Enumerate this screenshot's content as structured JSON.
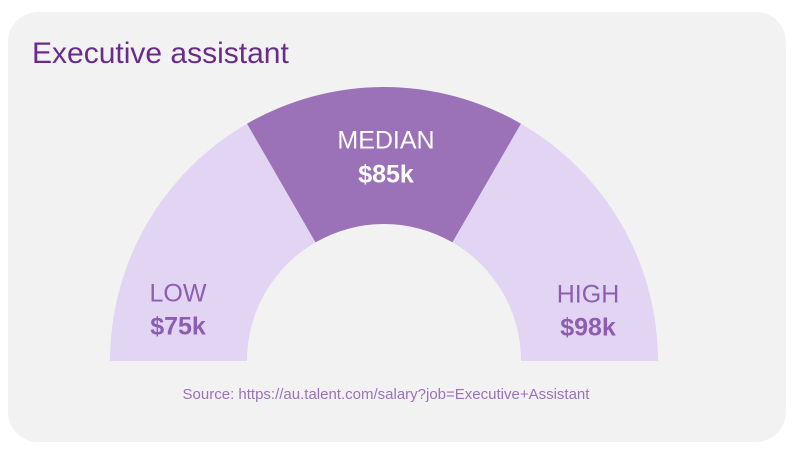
{
  "title": "Executive assistant",
  "segments": [
    {
      "label": "LOW",
      "value": "$75k"
    },
    {
      "label": "MEDIAN",
      "value": "$85k"
    },
    {
      "label": "HIGH",
      "value": "$98k"
    }
  ],
  "source": "Source: https://au.talent.com/salary?job=Executive+Assistant"
}
